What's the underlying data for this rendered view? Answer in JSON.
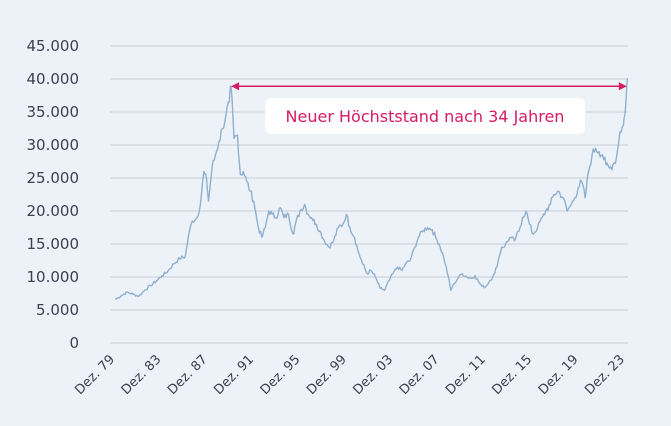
{
  "chart_data": {
    "type": "line",
    "title": "",
    "xlabel": "",
    "ylabel": "",
    "ylim": [
      0,
      45000
    ],
    "y_ticks": [
      0,
      5000,
      10000,
      15000,
      20000,
      25000,
      30000,
      35000,
      40000,
      45000
    ],
    "y_tick_labels": [
      "0",
      "5.000",
      "10.000",
      "15.000",
      "20.000",
      "25.000",
      "30.000",
      "35.000",
      "40.000",
      "45.000"
    ],
    "x_tick_years": [
      1979,
      1983,
      1987,
      1991,
      1995,
      1999,
      2003,
      2007,
      2011,
      2015,
      2019,
      2023
    ],
    "x_tick_labels": [
      "Dez. 79",
      "Dez. 83",
      "Dez. 87",
      "Dez. 91",
      "Dez. 95",
      "Dez. 99",
      "Dez. 03",
      "Dez. 07",
      "Dez. 11",
      "Dez. 15",
      "Dez. 19",
      "Dez. 23"
    ],
    "grid": true,
    "legend": "none",
    "series_color": "#8fb0cf",
    "annotation_color": "#d81b60",
    "annotation": {
      "text": "Neuer Höchststand nach 34 Jahren",
      "from": {
        "x": 1989.95,
        "y": 38900
      },
      "to": {
        "x": 2024.1,
        "y": 38900
      }
    },
    "x": [
      1979.95,
      1980.5,
      1981.0,
      1981.5,
      1982.0,
      1982.5,
      1983.0,
      1983.5,
      1984.0,
      1984.5,
      1985.0,
      1985.5,
      1986.0,
      1986.3,
      1986.6,
      1987.0,
      1987.3,
      1987.6,
      1987.85,
      1988.0,
      1988.3,
      1988.6,
      1988.9,
      1989.2,
      1989.5,
      1989.8,
      1989.95,
      1990.2,
      1990.5,
      1990.75,
      1991.0,
      1991.3,
      1991.6,
      1991.9,
      1992.3,
      1992.6,
      1992.9,
      1993.2,
      1993.5,
      1993.8,
      1994.2,
      1994.5,
      1994.9,
      1995.3,
      1995.5,
      1995.9,
      1996.3,
      1996.6,
      1996.9,
      1997.3,
      1997.6,
      1998.0,
      1998.4,
      1998.8,
      1999.2,
      1999.6,
      1999.9,
      2000.2,
      2000.6,
      2000.9,
      2001.3,
      2001.7,
      2002.0,
      2002.4,
      2002.8,
      2003.2,
      2003.6,
      2003.9,
      2004.3,
      2004.7,
      2005.0,
      2005.4,
      2005.8,
      2006.1,
      2006.5,
      2006.9,
      2007.3,
      2007.6,
      2007.9,
      2008.3,
      2008.7,
      2008.9,
      2009.2,
      2009.6,
      2009.9,
      2010.3,
      2010.7,
      2011.0,
      2011.3,
      2011.6,
      2011.9,
      2012.3,
      2012.7,
      2013.0,
      2013.3,
      2013.6,
      2014.0,
      2014.4,
      2014.8,
      2015.1,
      2015.4,
      2015.7,
      2016.0,
      2016.4,
      2016.8,
      2017.1,
      2017.5,
      2017.8,
      2018.2,
      2018.6,
      2018.95,
      2019.3,
      2019.6,
      2019.9,
      2020.2,
      2020.5,
      2020.8,
      2021.1,
      2021.4,
      2021.7,
      2022.0,
      2022.3,
      2022.6,
      2022.9,
      2023.2,
      2023.5,
      2023.8,
      2024.0,
      2024.15
    ],
    "values": [
      6600,
      7200,
      7700,
      7400,
      7100,
      8000,
      8700,
      9400,
      10200,
      10900,
      12000,
      12800,
      13100,
      16500,
      18500,
      19000,
      21000,
      26000,
      24500,
      21500,
      26500,
      28500,
      30500,
      32500,
      34500,
      36500,
      38900,
      31000,
      31500,
      25500,
      26000,
      24500,
      23000,
      21500,
      17500,
      16000,
      17500,
      20000,
      19500,
      19000,
      20500,
      19000,
      19500,
      16500,
      18000,
      20000,
      21000,
      19500,
      19000,
      18000,
      17000,
      15500,
      14500,
      15500,
      17500,
      18000,
      19500,
      17500,
      16000,
      14000,
      12000,
      10500,
      11000,
      10000,
      8300,
      8000,
      9500,
      10500,
      11500,
      11000,
      12000,
      12500,
      14500,
      16000,
      17000,
      17500,
      17200,
      16000,
      15000,
      13000,
      10000,
      8000,
      9000,
      10000,
      10500,
      10000,
      9800,
      10200,
      9300,
      8600,
      8500,
      9500,
      10500,
      12500,
      14500,
      14800,
      16000,
      15500,
      17000,
      19000,
      20000,
      18000,
      16500,
      17500,
      19000,
      20000,
      21000,
      22500,
      23000,
      22000,
      20000,
      21000,
      22000,
      23500,
      24500,
      22000,
      26000,
      28500,
      29500,
      29000,
      28500,
      27000,
      26500,
      27000,
      28000,
      32000,
      33000,
      36000,
      40100
    ]
  }
}
